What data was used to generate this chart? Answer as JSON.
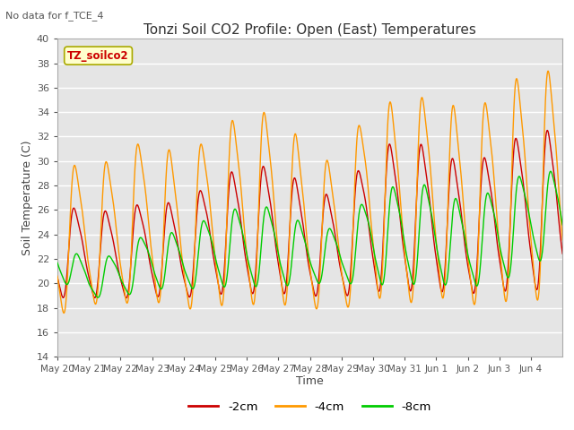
{
  "title": "Tonzi Soil CO2 Profile: Open (East) Temperatures",
  "subtitle": "No data for f_TCE_4",
  "xlabel": "Time",
  "ylabel": "Soil Temperature (C)",
  "ylim": [
    14,
    40
  ],
  "yticks": [
    14,
    16,
    18,
    20,
    22,
    24,
    26,
    28,
    30,
    32,
    34,
    36,
    38,
    40
  ],
  "legend_label": "TZ_soilco2",
  "series_labels": [
    "-2cm",
    "-4cm",
    "-8cm"
  ],
  "series_colors": [
    "#cc0000",
    "#ff9900",
    "#00cc00"
  ],
  "background_color": "#e5e5e5",
  "tick_labels": [
    "May 20",
    "May 21",
    "May 22",
    "May 23",
    "May 24",
    "May 25",
    "May 26",
    "May 27",
    "May 28",
    "May 29",
    "May 30",
    "May 31",
    "Jun 1",
    "Jun 2",
    "Jun 3",
    "Jun 4"
  ]
}
